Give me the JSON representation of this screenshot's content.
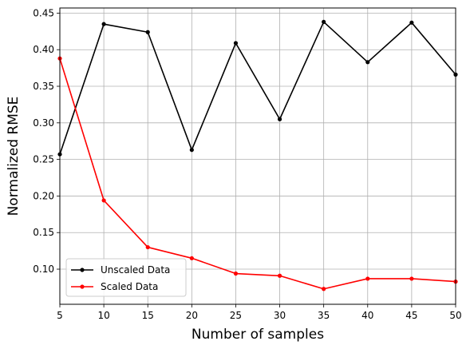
{
  "chart_data": {
    "type": "line",
    "title": "",
    "xlabel": "Number of samples",
    "ylabel": "Normalized RMSE",
    "x": [
      5,
      10,
      15,
      20,
      25,
      30,
      35,
      40,
      45,
      50
    ],
    "xlim": [
      5,
      50
    ],
    "ylim": [
      0.052,
      0.457
    ],
    "xticks": [
      5,
      10,
      15,
      20,
      25,
      30,
      35,
      40,
      45,
      50
    ],
    "xtick_labels": [
      "5",
      "10",
      "15",
      "20",
      "25",
      "30",
      "35",
      "40",
      "45",
      "50"
    ],
    "yticks": [
      0.1,
      0.15,
      0.2,
      0.25,
      0.3,
      0.35,
      0.4,
      0.45
    ],
    "ytick_labels": [
      "0.10",
      "0.15",
      "0.20",
      "0.25",
      "0.30",
      "0.35",
      "0.40",
      "0.45"
    ],
    "grid": true,
    "legend_position": "lower-left",
    "series": [
      {
        "name": "Unscaled Data",
        "color": "#000000",
        "marker": "dot",
        "values": [
          0.257,
          0.435,
          0.424,
          0.263,
          0.409,
          0.305,
          0.438,
          0.383,
          0.437,
          0.366
        ]
      },
      {
        "name": "Scaled Data",
        "color": "#ff0000",
        "marker": "dot",
        "values": [
          0.388,
          0.194,
          0.13,
          0.115,
          0.094,
          0.091,
          0.073,
          0.087,
          0.087,
          0.083
        ]
      }
    ]
  }
}
